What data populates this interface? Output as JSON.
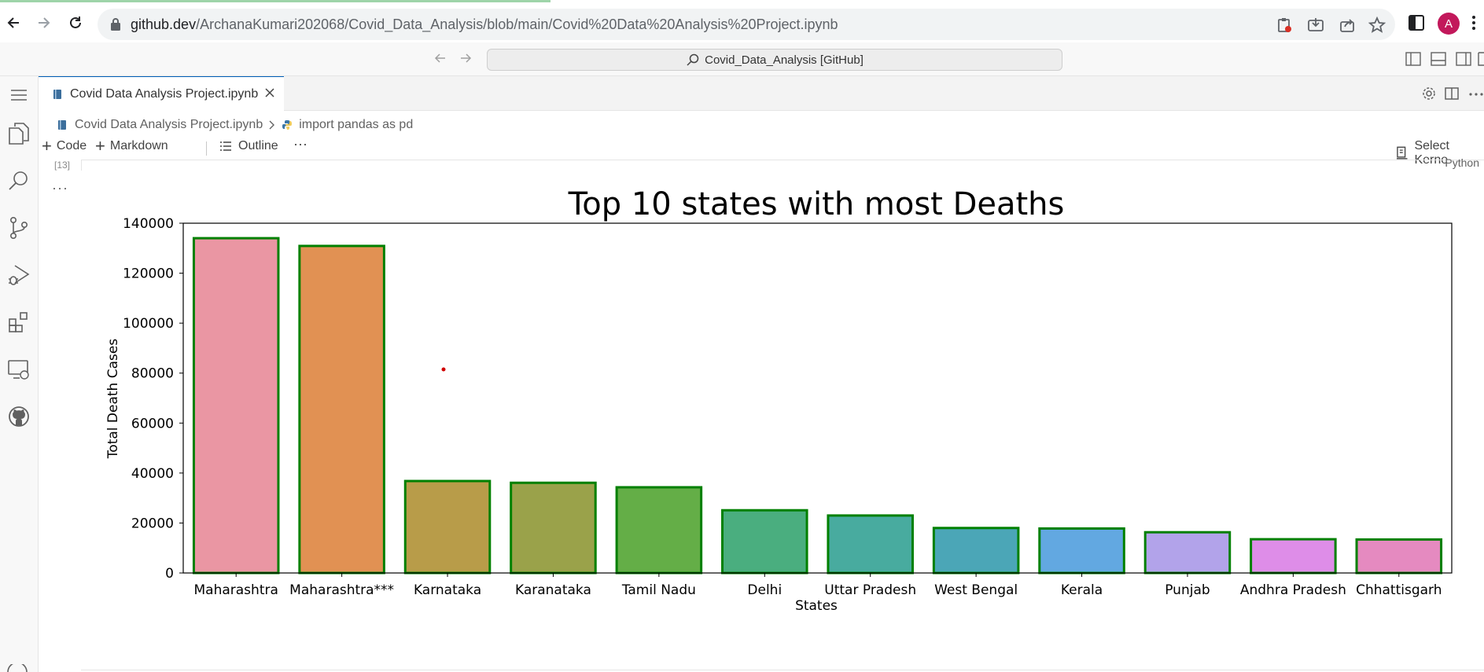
{
  "browser": {
    "url_host": "github.dev",
    "url_path": "/ArchanaKumari202068/Covid_Data_Analysis/blob/main/Covid%20Data%20Analysis%20Project.ipynb",
    "profile_initial": "A"
  },
  "titlebar": {
    "command_center": "Covid_Data_Analysis [GitHub]"
  },
  "editor": {
    "tab_label": "Covid Data Analysis Project.ipynb",
    "breadcrumb": [
      "Covid Data Analysis Project.ipynb",
      "import pandas as pd"
    ],
    "toolbar": {
      "code_label": "Code",
      "markdown_label": "Markdown",
      "outline_label": "Outline",
      "more_label": "···",
      "select_kernel_label": "Select Kerne"
    },
    "cell": {
      "execution_count": "[13]",
      "language": "Python",
      "output_menu": "···"
    }
  },
  "chart_data": {
    "type": "bar",
    "title": "Top 10 states with most Deaths",
    "xlabel": "States",
    "ylabel": "Total Death Cases",
    "ylim": [
      0,
      140000
    ],
    "yticks": [
      0,
      20000,
      40000,
      60000,
      80000,
      100000,
      120000,
      140000
    ],
    "categories": [
      "Maharashtra",
      "Maharashtra***",
      "Karnataka",
      "Karanataka",
      "Tamil Nadu",
      "Delhi",
      "Uttar Pradesh",
      "West Bengal",
      "Kerala",
      "Punjab",
      "Andhra Pradesh",
      "Chhattisgarh"
    ],
    "values": [
      134000,
      130900,
      36800,
      36100,
      34300,
      25100,
      23000,
      18000,
      17800,
      16300,
      13500,
      13400
    ],
    "colors": [
      "#ea96a3",
      "#e19153",
      "#b89c49",
      "#9aa24a",
      "#64ae47",
      "#4aae7f",
      "#48ab9f",
      "#4ba6b7",
      "#62a8e1",
      "#b2a3ea",
      "#de8de8",
      "#e58ac0"
    ],
    "edge_color": "#008000",
    "grid": false,
    "legend": "none"
  }
}
